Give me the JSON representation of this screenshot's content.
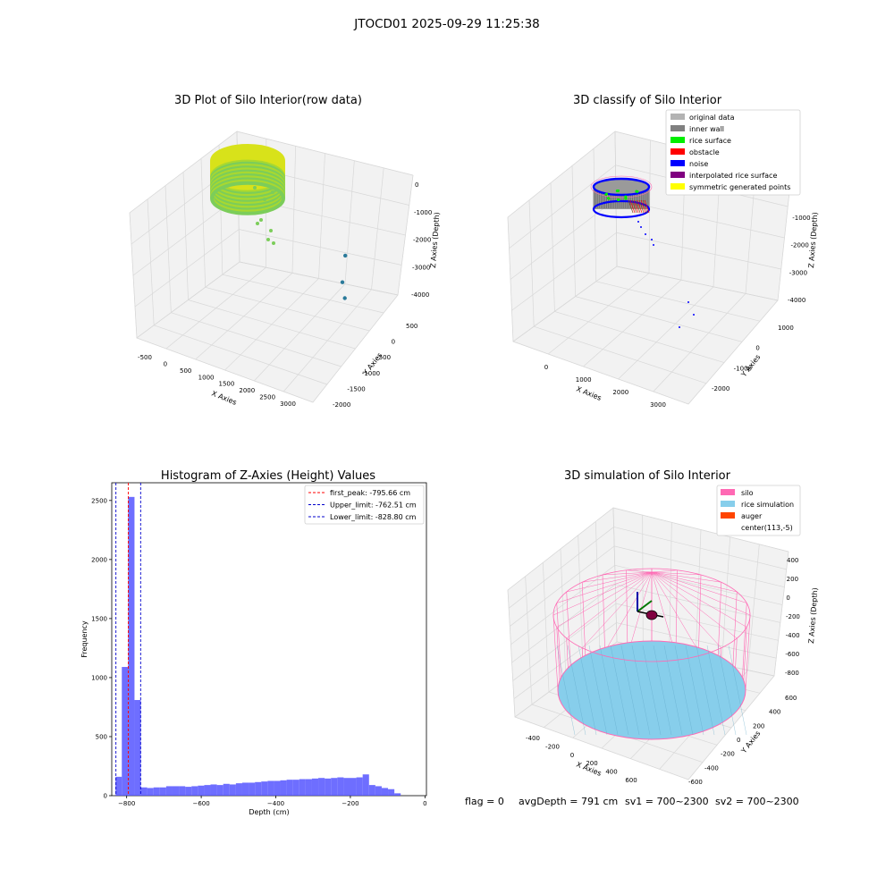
{
  "suptitle": "JTOCD01 2025-09-29 11:25:38",
  "colors": {
    "raw_green": "#7ccd5a",
    "raw_yellow": "#d8e21a",
    "original": "#b3b3b3",
    "inner_wall": "#808080",
    "rice_surface": "#00ee00",
    "obstacle": "#ff0000",
    "noise": "#0000ff",
    "interpolated": "#800080",
    "symmetric": "#ffff00",
    "hist_bar": "#5555ff",
    "peak_line": "#ff0000",
    "limit_line": "#0000cc",
    "silo": "#ff69b4",
    "rice_sim": "#87ceeb",
    "auger": "#ff4500"
  },
  "chart_data": [
    {
      "type": "scatter",
      "title": "3D Plot of Silo Interior(row data)",
      "xlabel": "X Axies",
      "ylabel": "Y Axies",
      "zlabel": "Z Axies (Depth)",
      "x_ticks": [
        "-500",
        "0",
        "500",
        "1000",
        "1500",
        "2000",
        "2500",
        "3000"
      ],
      "y_ticks": [
        "500",
        "0",
        "-500",
        "-1000",
        "-1500",
        "-2000"
      ],
      "z_ticks": [
        "0",
        "-1000",
        "-2000",
        "-3000",
        "-4000"
      ],
      "points": [
        {
          "x": 2800,
          "y": -800,
          "z": -4050
        },
        {
          "x": 2900,
          "y": -1100,
          "z": -4350
        },
        {
          "x": 3050,
          "y": -1300,
          "z": -4500
        }
      ]
    },
    {
      "type": "scatter",
      "title": "3D classify of Silo Interior",
      "xlabel": "X Axies",
      "ylabel": "Y Axies",
      "zlabel": "Z Axies (Depth)",
      "x_ticks": [
        "0",
        "1000",
        "2000",
        "3000"
      ],
      "y_ticks": [
        "1000",
        "0",
        "-1000",
        "-2000"
      ],
      "z_ticks": [
        "0",
        "-1000",
        "-2000",
        "-3000",
        "-4000"
      ],
      "legend": [
        {
          "label": "original data",
          "color_key": "original"
        },
        {
          "label": "inner wall",
          "color_key": "inner_wall"
        },
        {
          "label": "rice surface",
          "color_key": "rice_surface"
        },
        {
          "label": "obstacle",
          "color_key": "obstacle"
        },
        {
          "label": "noise",
          "color_key": "noise"
        },
        {
          "label": "interpolated rice surface",
          "color_key": "interpolated"
        },
        {
          "label": "symmetric generated points",
          "color_key": "symmetric"
        }
      ]
    },
    {
      "type": "bar",
      "title": "Histogram of Z-Axies (Height) Values",
      "xlabel": "Depth (cm)",
      "ylabel": "Frequency",
      "xlim": [
        -840,
        4
      ],
      "ylim": [
        0,
        2650
      ],
      "x_ticks": [
        -800,
        -600,
        -400,
        -200,
        0
      ],
      "y_ticks": [
        0,
        500,
        1000,
        1500,
        2000,
        2500
      ],
      "bin_start": -830,
      "bin_width": 17,
      "values": [
        160,
        1090,
        2530,
        810,
        70,
        65,
        70,
        70,
        80,
        80,
        80,
        75,
        80,
        85,
        90,
        95,
        90,
        100,
        95,
        105,
        110,
        110,
        115,
        120,
        125,
        125,
        130,
        135,
        135,
        140,
        140,
        145,
        150,
        145,
        150,
        155,
        150,
        150,
        155,
        180,
        90,
        80,
        65,
        55,
        20
      ],
      "vlines": [
        {
          "x": -795.66,
          "color_key": "peak_line",
          "label": "first_peak: -795.66 cm"
        },
        {
          "x": -762.51,
          "color_key": "limit_line",
          "label": "Upper_limit: -762.51 cm"
        },
        {
          "x": -828.8,
          "color_key": "limit_line",
          "label": "Lower_limit: -828.80 cm"
        }
      ]
    },
    {
      "type": "scatter",
      "title": "3D simulation of Silo Interior",
      "xlabel": "X Axies",
      "ylabel": "Y Axies",
      "zlabel": "Z Axies (Depth)",
      "x_ticks": [
        "-400",
        "-200",
        "0",
        "200",
        "400",
        "600"
      ],
      "y_ticks": [
        "600",
        "400",
        "200",
        "0",
        "-200",
        "-400",
        "-600"
      ],
      "z_ticks": [
        "400",
        "200",
        "0",
        "-200",
        "-400",
        "-600",
        "-800"
      ],
      "legend": [
        {
          "label": "silo",
          "color_key": "silo"
        },
        {
          "label": "rice simulation",
          "color_key": "rice_sim"
        },
        {
          "label": "auger",
          "color_key": "auger"
        },
        {
          "label": "center(113,-5)",
          "color_key": ""
        }
      ]
    }
  ],
  "footer": {
    "flag": "flag = 0",
    "avg_depth": "avgDepth = 791 cm",
    "sv1": "sv1 = 700~2300",
    "sv2": "sv2 = 700~2300"
  }
}
